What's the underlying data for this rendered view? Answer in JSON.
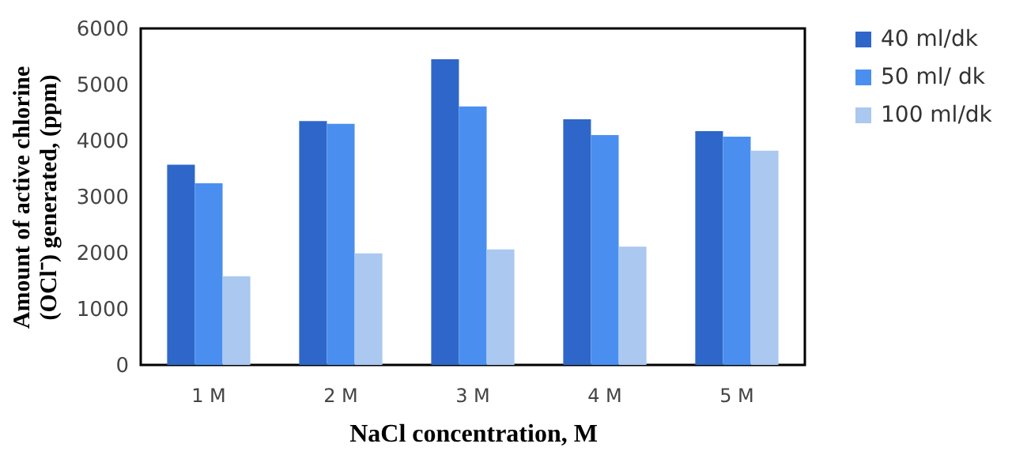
{
  "chart_data": {
    "type": "bar",
    "xlabel": "NaCl concentration, M",
    "ylabel": "Amount of active chlorine\n(OCl⁻) generated, (ppm)",
    "categories": [
      "1 M",
      "2 M",
      "3 M",
      "4 M",
      "5 M"
    ],
    "series": [
      {
        "name": "40 ml/dk",
        "color": "#2e67c9",
        "values": [
          3570,
          4350,
          5450,
          4380,
          4170
        ]
      },
      {
        "name": "50 ml/ dk",
        "color": "#4a8ff0",
        "values": [
          3240,
          4300,
          4610,
          4100,
          4070
        ]
      },
      {
        "name": "100 ml/dk",
        "color": "#aac8f0",
        "values": [
          1580,
          1990,
          2060,
          2110,
          3820
        ]
      }
    ],
    "ylim": [
      0,
      6000
    ],
    "yticks": [
      0,
      1000,
      2000,
      3000,
      4000,
      5000,
      6000
    ],
    "grid": false,
    "legend": "right"
  }
}
